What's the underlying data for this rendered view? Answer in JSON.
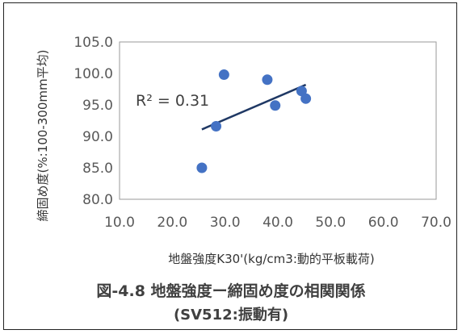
{
  "chart_data": {
    "type": "scatter",
    "xlabel": "地盤強度K30'(kg/cm3:動的平板載荷)",
    "ylabel": "締固め度(%:100-300mm平均)",
    "xlim": [
      10.0,
      70.0
    ],
    "ylim": [
      80.0,
      105.0
    ],
    "xticks": [
      "10.0",
      "20.0",
      "30.0",
      "40.0",
      "50.0",
      "60.0",
      "70.0"
    ],
    "yticks": [
      "80.0",
      "85.0",
      "90.0",
      "95.0",
      "100.0",
      "105.0"
    ],
    "grid": false,
    "points": [
      {
        "x": 25.6,
        "y": 85.0
      },
      {
        "x": 28.3,
        "y": 91.6
      },
      {
        "x": 29.8,
        "y": 99.8
      },
      {
        "x": 38.0,
        "y": 99.0
      },
      {
        "x": 39.5,
        "y": 94.9
      },
      {
        "x": 44.5,
        "y": 97.2
      },
      {
        "x": 45.3,
        "y": 96.0
      }
    ],
    "trendline": {
      "x": [
        25.6,
        45.3
      ],
      "y": [
        91.1,
        98.2
      ]
    },
    "annotation": "R² = 0.31",
    "point_color": "#4472c4",
    "trend_color": "#1f3864"
  },
  "caption": {
    "line1": "図-4.8 地盤強度ー締固め度の相関関係",
    "line2": "(SV512:振動有)"
  }
}
